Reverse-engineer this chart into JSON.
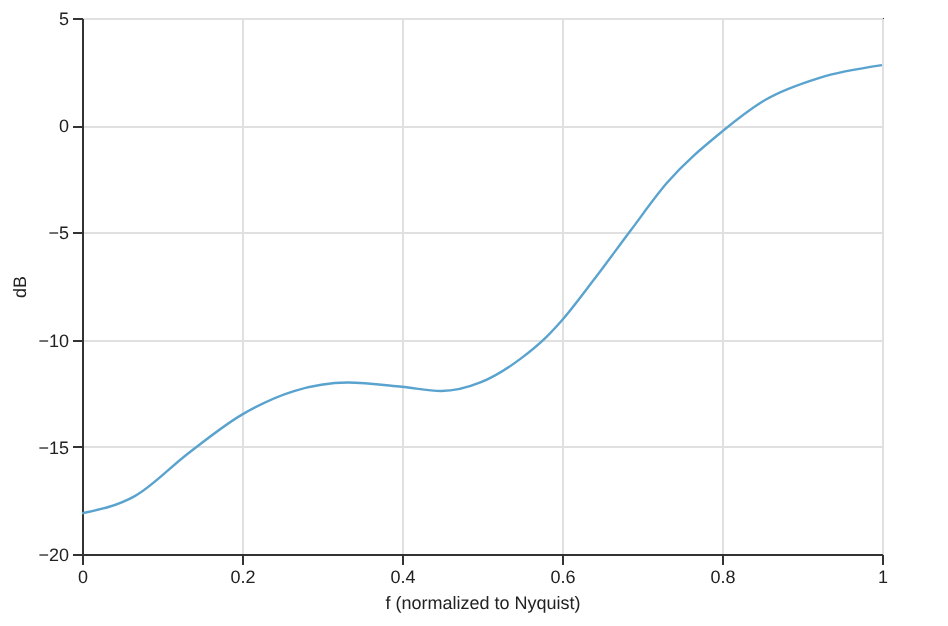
{
  "chart_data": {
    "type": "line",
    "xlabel": "f (normalized to Nyquist)",
    "ylabel": "dB",
    "x": [
      0,
      0.066,
      0.133,
      0.2,
      0.265,
      0.332,
      0.4,
      0.449,
      0.498,
      0.548,
      0.58,
      0.6,
      0.64,
      0.686,
      0.731,
      0.8,
      0.855,
      0.921,
      1.0
    ],
    "series": [
      {
        "color": "#5aa3cf",
        "values": [
          -18.1,
          -17.3,
          -15.3,
          -13.5,
          -12.4,
          -12.0,
          -12.2,
          -12.4,
          -12.0,
          -10.9,
          -9.9,
          -9.1,
          -7.2,
          -4.9,
          -2.7,
          -0.3,
          1.2,
          2.2,
          2.8
        ]
      }
    ],
    "xlim": [
      0,
      1
    ],
    "xticks": [
      0,
      0.2,
      0.4,
      0.6,
      0.8,
      1
    ],
    "ylim": [
      -20,
      5
    ],
    "yticks": [
      -20,
      -15,
      -10,
      -5,
      0,
      5
    ],
    "grid": true,
    "line_style": "solid",
    "marker": "none"
  }
}
